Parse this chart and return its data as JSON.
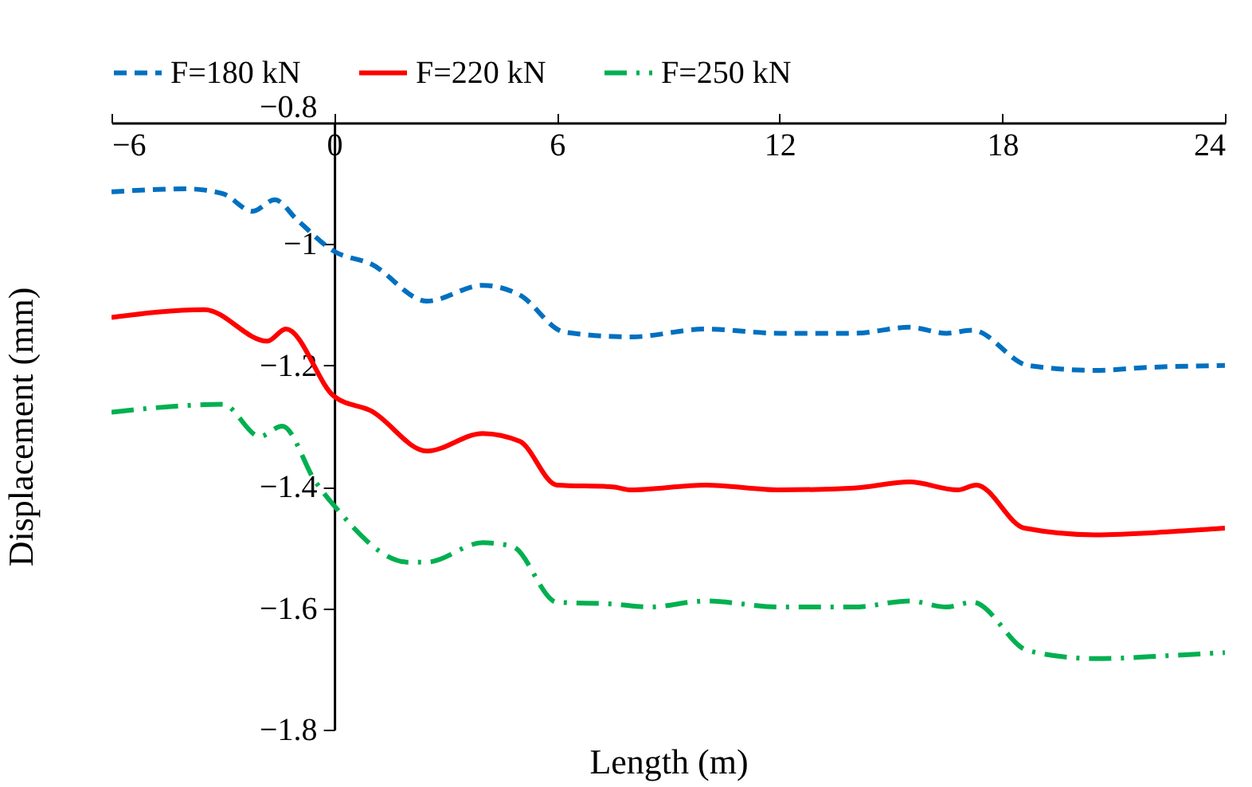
{
  "chart_data": {
    "type": "line",
    "xlabel": "Length (m)",
    "ylabel": "Displacement (mm)",
    "xlim": [
      -6,
      24
    ],
    "xticks": [
      -6,
      0,
      6,
      12,
      18,
      24
    ],
    "ylim": [
      -1.8,
      -0.8
    ],
    "yticks": [
      -1.8,
      -1.6,
      -1.4,
      -1.2,
      -1,
      -0.8
    ],
    "grid": false,
    "legend": "top",
    "marker": "none",
    "series": [
      {
        "name": "F=180 kN",
        "color": "#0070c0",
        "line_style": "dashed",
        "x": [
          -6,
          -4,
          -3,
          -2.2,
          -1.6,
          -1,
          0,
          1,
          2.5,
          4,
          5,
          6.2,
          8,
          10,
          12,
          14,
          15.5,
          16.5,
          17.2,
          18.7,
          20.5,
          22,
          24
        ],
        "values": [
          -0.914,
          -0.909,
          -0.917,
          -0.946,
          -0.927,
          -0.96,
          -1.012,
          -1.033,
          -1.094,
          -1.068,
          -1.084,
          -1.145,
          -1.153,
          -1.14,
          -1.147,
          -1.147,
          -1.137,
          -1.147,
          -1.142,
          -1.2,
          -1.208,
          -1.203,
          -1.2
        ]
      },
      {
        "name": "F=220 kN",
        "color": "#ff0000",
        "line_style": "solid",
        "x": [
          -6,
          -3.5,
          -1.8,
          -1.3,
          0,
          1,
          2.5,
          4,
          5,
          6,
          7.5,
          8,
          10,
          12,
          14,
          15.5,
          16.8,
          17.3,
          18.6,
          20.5,
          22.5,
          24
        ],
        "values": [
          -1.121,
          -1.108,
          -1.16,
          -1.14,
          -1.251,
          -1.275,
          -1.341,
          -1.312,
          -1.325,
          -1.397,
          -1.4,
          -1.405,
          -1.397,
          -1.405,
          -1.402,
          -1.392,
          -1.405,
          -1.397,
          -1.468,
          -1.479,
          -1.474,
          -1.468
        ]
      },
      {
        "name": "F=250 kN",
        "color": "#00b050",
        "line_style": "dashdot",
        "x": [
          -6,
          -3,
          -2,
          -1.4,
          -0.5,
          0,
          2,
          2.5,
          4,
          4.8,
          6,
          7.5,
          8.5,
          10,
          12,
          14,
          15.5,
          16.5,
          17.2,
          18.7,
          20.5,
          22.5,
          24
        ],
        "values": [
          -1.277,
          -1.264,
          -1.317,
          -1.3,
          -1.392,
          -1.431,
          -1.524,
          -1.524,
          -1.492,
          -1.498,
          -1.59,
          -1.593,
          -1.598,
          -1.588,
          -1.598,
          -1.598,
          -1.588,
          -1.598,
          -1.59,
          -1.67,
          -1.683,
          -1.678,
          -1.673
        ]
      }
    ]
  }
}
